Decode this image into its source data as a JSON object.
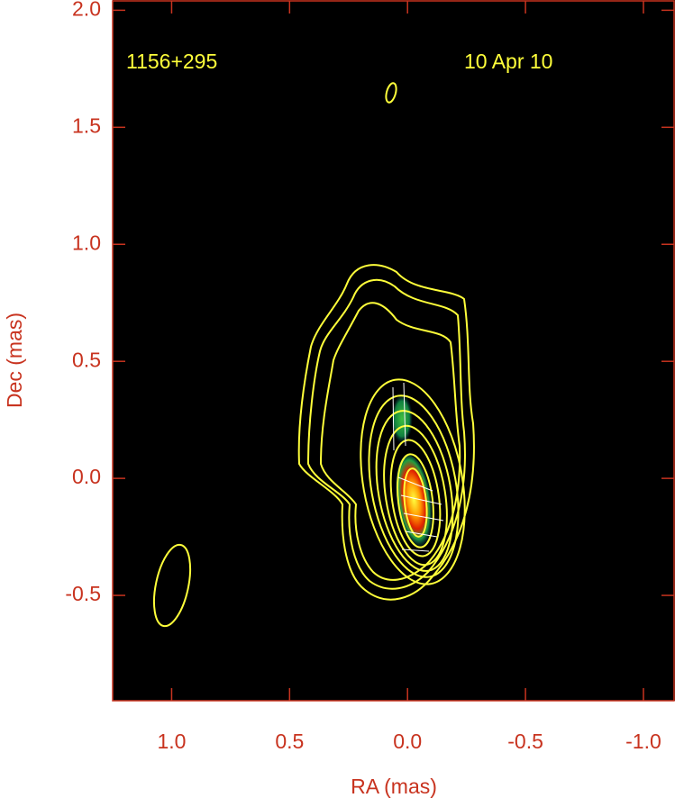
{
  "chart_data": {
    "type": "contour",
    "annotations": [
      "1156+295",
      "10 Apr 10"
    ],
    "xlabel": "RA (mas)",
    "ylabel": "Dec (mas)",
    "xlim": [
      1.25,
      -1.13
    ],
    "ylim": [
      -0.95,
      2.04
    ],
    "xticks": [
      {
        "value": 1,
        "label": "1.0"
      },
      {
        "value": 0.5,
        "label": "0.5"
      },
      {
        "value": 0,
        "label": "0.0"
      },
      {
        "value": -0.5,
        "label": "-0.5"
      },
      {
        "value": -1,
        "label": "-1.0"
      }
    ],
    "yticks": [
      {
        "value": 2,
        "label": "2.0"
      },
      {
        "value": 1.5,
        "label": "1.5"
      },
      {
        "value": 1,
        "label": "1.0"
      },
      {
        "value": 0.5,
        "label": "0.5"
      },
      {
        "value": 0,
        "label": "0.0"
      },
      {
        "value": -0.5,
        "label": "-0.5"
      }
    ],
    "axis_color": "#c8331f",
    "contour_color": "#ffff3a"
  }
}
